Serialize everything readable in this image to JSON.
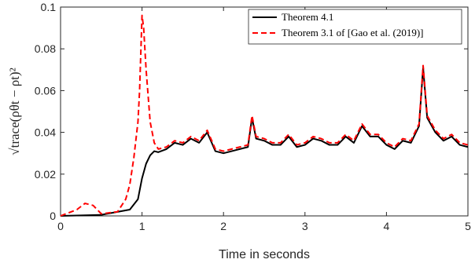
{
  "chart_data": {
    "type": "line",
    "xlabel": "Time in seconds",
    "ylabel": "√trace(ρθt − ρt)²",
    "xlim": [
      0,
      5
    ],
    "ylim": [
      0,
      0.1
    ],
    "x_ticks": [
      0,
      1,
      2,
      3,
      4,
      5
    ],
    "x_tick_labels": [
      "0",
      "1",
      "2",
      "3",
      "4",
      "5"
    ],
    "y_ticks": [
      0,
      0.02,
      0.04,
      0.06,
      0.08,
      0.1
    ],
    "y_tick_labels": [
      "0",
      "0.02",
      "0.04",
      "0.06",
      "0.08",
      "0.1"
    ],
    "grid": false,
    "legend_position": "top-right",
    "series": [
      {
        "name": "Theorem 4.1",
        "color": "#000000",
        "style": "solid",
        "x": [
          0,
          0.5,
          0.85,
          0.95,
          1.0,
          1.05,
          1.1,
          1.15,
          1.2,
          1.3,
          1.4,
          1.5,
          1.6,
          1.7,
          1.8,
          1.9,
          2.0,
          2.1,
          2.2,
          2.3,
          2.35,
          2.4,
          2.5,
          2.6,
          2.7,
          2.8,
          2.9,
          3.0,
          3.1,
          3.2,
          3.3,
          3.4,
          3.5,
          3.6,
          3.7,
          3.8,
          3.9,
          4.0,
          4.1,
          4.2,
          4.3,
          4.4,
          4.45,
          4.5,
          4.6,
          4.7,
          4.8,
          4.9,
          5.0
        ],
        "y": [
          0,
          0.0005,
          0.003,
          0.008,
          0.018,
          0.025,
          0.029,
          0.031,
          0.0305,
          0.032,
          0.035,
          0.034,
          0.037,
          0.035,
          0.04,
          0.031,
          0.03,
          0.031,
          0.032,
          0.033,
          0.047,
          0.037,
          0.036,
          0.034,
          0.034,
          0.038,
          0.033,
          0.034,
          0.037,
          0.036,
          0.034,
          0.034,
          0.038,
          0.035,
          0.043,
          0.038,
          0.038,
          0.034,
          0.032,
          0.036,
          0.035,
          0.043,
          0.071,
          0.047,
          0.04,
          0.036,
          0.038,
          0.034,
          0.033
        ]
      },
      {
        "name": "Theorem 3.1 of [Gao et al. (2019)]",
        "color": "#ff0000",
        "style": "dashed",
        "x": [
          0,
          0.2,
          0.3,
          0.4,
          0.5,
          0.7,
          0.8,
          0.85,
          0.9,
          0.95,
          0.97,
          1.0,
          1.02,
          1.05,
          1.08,
          1.1,
          1.15,
          1.2,
          1.3,
          1.4,
          1.5,
          1.6,
          1.7,
          1.8,
          1.9,
          2.0,
          2.1,
          2.2,
          2.3,
          2.35,
          2.4,
          2.5,
          2.6,
          2.7,
          2.8,
          2.9,
          3.0,
          3.1,
          3.2,
          3.3,
          3.4,
          3.5,
          3.6,
          3.7,
          3.8,
          3.9,
          4.0,
          4.1,
          4.2,
          4.3,
          4.4,
          4.45,
          4.5,
          4.6,
          4.7,
          4.8,
          4.9,
          5.0
        ],
        "y": [
          0,
          0.003,
          0.006,
          0.005,
          0.001,
          0.002,
          0.008,
          0.015,
          0.028,
          0.045,
          0.06,
          0.096,
          0.09,
          0.07,
          0.055,
          0.045,
          0.035,
          0.032,
          0.033,
          0.036,
          0.035,
          0.038,
          0.036,
          0.041,
          0.032,
          0.031,
          0.032,
          0.033,
          0.034,
          0.048,
          0.038,
          0.037,
          0.035,
          0.035,
          0.039,
          0.034,
          0.035,
          0.038,
          0.037,
          0.035,
          0.035,
          0.039,
          0.036,
          0.044,
          0.039,
          0.039,
          0.035,
          0.033,
          0.037,
          0.036,
          0.044,
          0.072,
          0.048,
          0.041,
          0.037,
          0.039,
          0.035,
          0.034
        ]
      }
    ]
  }
}
